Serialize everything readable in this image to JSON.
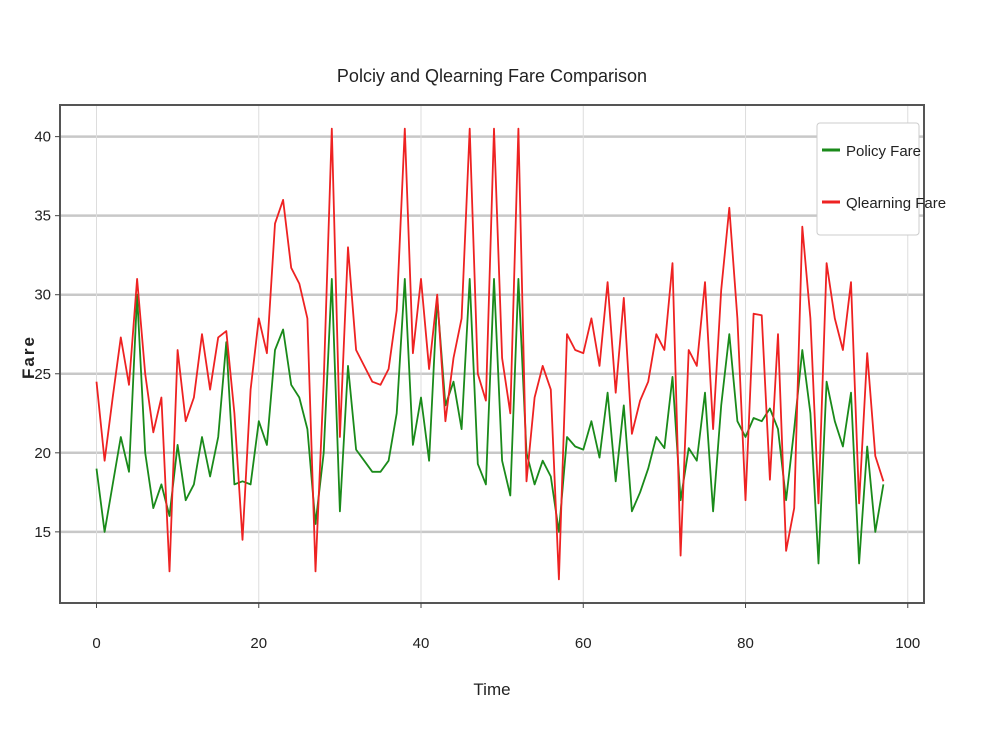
{
  "chart_data": {
    "type": "line",
    "title": "Polciy and Qlearning Fare Comparison",
    "xlabel": "Time",
    "ylabel": "Fare",
    "xlim": [
      -4.5,
      102
    ],
    "ylim": [
      10.5,
      42
    ],
    "xticks": [
      "0",
      "20",
      "40",
      "60",
      "80",
      "100"
    ],
    "yticks": [
      "15",
      "20",
      "25",
      "30",
      "35",
      "40"
    ],
    "grid": true,
    "legend_position": "top-right",
    "x": [
      0,
      1,
      2,
      3,
      4,
      5,
      6,
      7,
      8,
      9,
      10,
      11,
      12,
      13,
      14,
      15,
      16,
      17,
      18,
      19,
      20,
      21,
      22,
      23,
      24,
      25,
      26,
      27,
      28,
      29,
      30,
      31,
      32,
      33,
      34,
      35,
      36,
      37,
      38,
      39,
      40,
      41,
      42,
      43,
      44,
      45,
      46,
      47,
      48,
      49,
      50,
      51,
      52,
      53,
      54,
      55,
      56,
      57,
      58,
      59,
      60,
      61,
      62,
      63,
      64,
      65,
      66,
      67,
      68,
      69,
      70,
      71,
      72,
      73,
      74,
      75,
      76,
      77,
      78,
      79,
      80,
      81,
      82,
      83,
      84,
      85,
      86,
      87,
      88,
      89,
      90,
      91,
      92,
      93,
      94,
      95,
      96,
      97
    ],
    "series": [
      {
        "name": "Policy Fare",
        "color": "#1a8a1a",
        "values": [
          19,
          15,
          18,
          21,
          18.8,
          30,
          20,
          16.5,
          18,
          16,
          20.5,
          17,
          18,
          21,
          18.5,
          21,
          27,
          18,
          18.2,
          18,
          22,
          20.5,
          26.5,
          27.8,
          24.3,
          23.5,
          21.5,
          15.5,
          20,
          31,
          16.3,
          25.5,
          20.2,
          19.5,
          18.8,
          18.8,
          19.5,
          22.5,
          31,
          20.5,
          23.5,
          19.5,
          29.8,
          23,
          24.5,
          21.5,
          31,
          19.3,
          18,
          31,
          19.5,
          17.3,
          31,
          20,
          18,
          19.5,
          18.5,
          15,
          21,
          20.4,
          20.2,
          22,
          19.7,
          23.8,
          18.2,
          23,
          16.3,
          17.5,
          19,
          21,
          20.3,
          24.8,
          17,
          20.3,
          19.5,
          23.8,
          16.3,
          23,
          27.5,
          22,
          21,
          22.2,
          22,
          22.8,
          21.5,
          17,
          21.5,
          26.5,
          22.5,
          13,
          24.5,
          22,
          20.4,
          23.8,
          13,
          20.4,
          15,
          18
        ]
      },
      {
        "name": "Qlearning Fare",
        "color": "#ee2222",
        "values": [
          24.5,
          19.5,
          23.5,
          27.3,
          24.3,
          31,
          25,
          21.3,
          23.5,
          12.5,
          26.5,
          22,
          23.5,
          27.5,
          24,
          27.3,
          27.7,
          22.5,
          14.5,
          24,
          28.5,
          26.3,
          34.5,
          36,
          31.7,
          30.7,
          28.5,
          12.5,
          24.5,
          40.5,
          21,
          33,
          26.5,
          25.5,
          24.5,
          24.3,
          25.3,
          29,
          40.5,
          26.3,
          31,
          25.3,
          30,
          22,
          26,
          28.5,
          40.5,
          25,
          23.3,
          40.5,
          26,
          22.5,
          40.5,
          18.2,
          23.5,
          25.5,
          24,
          12,
          27.5,
          26.5,
          26.3,
          28.5,
          25.5,
          30.8,
          23.8,
          29.8,
          21.2,
          23.3,
          24.5,
          27.5,
          26.5,
          32,
          13.5,
          26.5,
          25.5,
          30.8,
          21.5,
          30.3,
          35.5,
          28.5,
          17,
          28.8,
          28.7,
          18.3,
          27.5,
          13.8,
          16.5,
          34.3,
          28.5,
          16.8,
          32,
          28.5,
          26.5,
          30.8,
          16.8,
          26.3,
          19.8,
          18.2
        ]
      }
    ]
  }
}
